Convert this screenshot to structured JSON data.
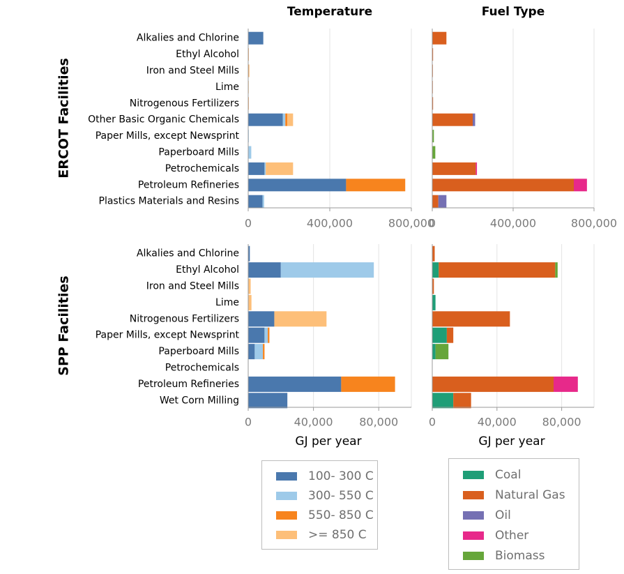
{
  "chart_data": [
    {
      "type": "bar",
      "orientation": "horizontal",
      "stacked": true,
      "panel": "ERCOT Temperature",
      "title": "Temperature",
      "row_title": "ERCOT Facilities",
      "categories": [
        "Alkalies and Chlorine",
        "Ethyl Alcohol",
        "Iron and Steel Mills",
        "Lime",
        "Nitrogenous Fertilizers",
        "Other Basic Organic Chemicals",
        "Paper Mills, except Newsprint",
        "Paperboard Mills",
        "Petrochemicals",
        "Petroleum Refineries",
        "Plastics Materials and Resins"
      ],
      "xlim": [
        0,
        800000
      ],
      "xticks": [
        "0",
        "400,000",
        "800,000"
      ],
      "xlabel": "",
      "series": [
        {
          "name": "100- 300 C",
          "color": "#4a78ad",
          "values": [
            74000,
            0,
            0,
            0,
            0,
            170000,
            0,
            0,
            80000,
            480000,
            70000
          ]
        },
        {
          "name": "300- 550 C",
          "color": "#9ecae9",
          "values": [
            0,
            0,
            0,
            0,
            0,
            12000,
            3000,
            15000,
            6000,
            0,
            8000
          ]
        },
        {
          "name": "550- 850 C",
          "color": "#f7841e",
          "values": [
            0,
            2000,
            3000,
            0,
            2000,
            10000,
            0,
            0,
            0,
            290000,
            0
          ]
        },
        {
          "name": ">= 850 C",
          "color": "#fdbf79",
          "values": [
            0,
            0,
            2000,
            2000,
            0,
            28000,
            0,
            0,
            134000,
            0,
            0
          ]
        }
      ]
    },
    {
      "type": "bar",
      "orientation": "horizontal",
      "stacked": true,
      "panel": "ERCOT Fuel Type",
      "title": "Fuel Type",
      "categories": [
        "Alkalies and Chlorine",
        "Ethyl Alcohol",
        "Iron and Steel Mills",
        "Lime",
        "Nitrogenous Fertilizers",
        "Other Basic Organic Chemicals",
        "Paper Mills, except Newsprint",
        "Paperboard Mills",
        "Petrochemicals",
        "Petroleum Refineries",
        "Plastics Materials and Resins"
      ],
      "xlim": [
        0,
        800000
      ],
      "xticks": [
        "0",
        "400,000",
        "800,000"
      ],
      "xlabel": "",
      "series": [
        {
          "name": "Coal",
          "color": "#1f9e77",
          "values": [
            0,
            0,
            0,
            0,
            0,
            0,
            0,
            0,
            0,
            0,
            0
          ]
        },
        {
          "name": "Natural Gas",
          "color": "#d95f1e",
          "values": [
            70000,
            4000,
            3000,
            2000,
            4000,
            200000,
            0,
            0,
            215000,
            700000,
            30000
          ]
        },
        {
          "name": "Oil",
          "color": "#7570b3",
          "values": [
            0,
            0,
            0,
            0,
            0,
            12000,
            0,
            0,
            0,
            0,
            40000
          ]
        },
        {
          "name": "Other",
          "color": "#e7298a",
          "values": [
            0,
            0,
            0,
            0,
            0,
            0,
            0,
            0,
            6000,
            65000,
            0
          ]
        },
        {
          "name": "Biomass",
          "color": "#66a63a",
          "values": [
            0,
            0,
            0,
            0,
            0,
            0,
            8000,
            15000,
            0,
            0,
            0
          ]
        }
      ]
    },
    {
      "type": "bar",
      "orientation": "horizontal",
      "stacked": true,
      "panel": "SPP Temperature",
      "row_title": "SPP Facilities",
      "categories": [
        "Alkalies and Chlorine",
        "Ethyl Alcohol",
        "Iron and Steel Mills",
        "Lime",
        "Nitrogenous Fertilizers",
        "Paper Mills, except Newsprint",
        "Paperboard Mills",
        "Petrochemicals",
        "Petroleum Refineries",
        "Wet Corn Milling"
      ],
      "xlim": [
        0,
        100000
      ],
      "xticks": [
        "0",
        "40,000",
        "80,000"
      ],
      "xlabel": "GJ per year",
      "series": [
        {
          "name": "100- 300 C",
          "color": "#4a78ad",
          "values": [
            1000,
            20000,
            0,
            0,
            16000,
            10000,
            4000,
            0,
            57000,
            24000
          ]
        },
        {
          "name": "300- 550 C",
          "color": "#9ecae9",
          "values": [
            0,
            57000,
            0,
            0,
            0,
            2000,
            5000,
            0,
            0,
            0
          ]
        },
        {
          "name": "550- 850 C",
          "color": "#f7841e",
          "values": [
            0,
            0,
            0,
            0,
            0,
            1000,
            1000,
            0,
            33000,
            0
          ]
        },
        {
          "name": ">= 850 C",
          "color": "#fdbf79",
          "values": [
            0,
            0,
            1500,
            2000,
            32000,
            0,
            0,
            0,
            0,
            0
          ]
        }
      ]
    },
    {
      "type": "bar",
      "orientation": "horizontal",
      "stacked": true,
      "panel": "SPP Fuel Type",
      "categories": [
        "Alkalies and Chlorine",
        "Ethyl Alcohol",
        "Iron and Steel Mills",
        "Lime",
        "Nitrogenous Fertilizers",
        "Paper Mills, except Newsprint",
        "Paperboard Mills",
        "Petrochemicals",
        "Petroleum Refineries",
        "Wet Corn Milling"
      ],
      "xlim": [
        0,
        100000
      ],
      "xticks": [
        "0",
        "40,000",
        "80,000"
      ],
      "xlabel": "GJ per year",
      "series": [
        {
          "name": "Coal",
          "color": "#1f9e77",
          "values": [
            0,
            4000,
            0,
            2000,
            0,
            9000,
            2000,
            0,
            0,
            13000
          ]
        },
        {
          "name": "Natural Gas",
          "color": "#d95f1e",
          "values": [
            1500,
            72000,
            1000,
            0,
            48000,
            4000,
            0,
            0,
            75000,
            11000
          ]
        },
        {
          "name": "Oil",
          "color": "#7570b3",
          "values": [
            0,
            0,
            0,
            0,
            0,
            0,
            0,
            0,
            0,
            0
          ]
        },
        {
          "name": "Other",
          "color": "#e7298a",
          "values": [
            0,
            0,
            0,
            0,
            0,
            0,
            0,
            0,
            15000,
            0
          ]
        },
        {
          "name": "Biomass",
          "color": "#66a63a",
          "values": [
            0,
            1500,
            0,
            0,
            0,
            0,
            8000,
            0,
            0,
            0
          ]
        }
      ]
    }
  ],
  "legends": {
    "temperature": [
      "100- 300 C",
      "300- 550 C",
      "550- 850 C",
      ">= 850 C"
    ],
    "fuel": [
      "Coal",
      "Natural Gas",
      "Oil",
      "Other",
      "Biomass"
    ]
  }
}
